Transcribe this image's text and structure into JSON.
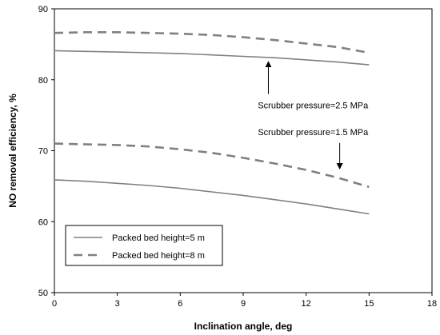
{
  "chart_data": {
    "type": "line",
    "title": "",
    "xlabel": "Inclination angle, deg",
    "ylabel": "NO removal efficiency, %",
    "xlim": [
      0,
      18
    ],
    "ylim": [
      50,
      90
    ],
    "xticks": [
      0,
      3,
      6,
      9,
      12,
      15,
      18
    ],
    "yticks": [
      50,
      60,
      70,
      80,
      90
    ],
    "xtick_labels": [
      "0",
      "3",
      "6",
      "9",
      "12",
      "15",
      "18"
    ],
    "ytick_labels": [
      "50",
      "60",
      "70",
      "80",
      "90"
    ],
    "grid": false,
    "legend_position": "bottom-left",
    "legend": [
      {
        "name": "Packed bed height=5 m",
        "style": "solid",
        "color": "#808080"
      },
      {
        "name": "Packed bed height=8 m",
        "style": "dashed",
        "color": "#808080"
      }
    ],
    "series": [
      {
        "group": "Scrubber pressure=2.5 MPa",
        "legend_index": 1,
        "x": [
          0,
          1.5,
          3,
          4.5,
          6,
          7.5,
          9,
          10.5,
          12,
          13.5,
          15
        ],
        "y": [
          86.6,
          86.7,
          86.7,
          86.6,
          86.5,
          86.3,
          86.0,
          85.6,
          85.1,
          84.6,
          83.8
        ]
      },
      {
        "group": "Scrubber pressure=2.5 MPa",
        "legend_index": 0,
        "x": [
          0,
          1.5,
          3,
          4.5,
          6,
          7.5,
          9,
          10.5,
          12,
          13.5,
          15
        ],
        "y": [
          84.1,
          84.0,
          83.9,
          83.8,
          83.7,
          83.5,
          83.3,
          83.1,
          82.8,
          82.5,
          82.1
        ]
      },
      {
        "group": "Scrubber pressure=1.5 MPa",
        "legend_index": 1,
        "x": [
          0,
          1.5,
          3,
          4.5,
          6,
          7.5,
          9,
          10.5,
          12,
          13.5,
          15
        ],
        "y": [
          71.0,
          70.9,
          70.8,
          70.6,
          70.2,
          69.7,
          69.0,
          68.2,
          67.3,
          66.2,
          64.9
        ]
      },
      {
        "group": "Scrubber pressure=1.5 MPa",
        "legend_index": 0,
        "x": [
          0,
          1.5,
          3,
          4.5,
          6,
          7.5,
          9,
          10.5,
          12,
          13.5,
          15
        ],
        "y": [
          65.9,
          65.7,
          65.4,
          65.1,
          64.7,
          64.2,
          63.7,
          63.1,
          62.5,
          61.8,
          61.1
        ]
      }
    ],
    "annotations": [
      {
        "text": "Scrubber pressure=2.5 MPa",
        "text_x": 9.7,
        "text_y": 76.0,
        "arrow_from": [
          10.2,
          78.0
        ],
        "arrow_to": [
          10.2,
          82.2
        ]
      },
      {
        "text": "Scrubber pressure=1.5 MPa",
        "text_x": 9.7,
        "text_y": 72.2,
        "arrow_from": [
          13.6,
          71.1
        ],
        "arrow_to": [
          13.6,
          67.8
        ]
      }
    ]
  }
}
